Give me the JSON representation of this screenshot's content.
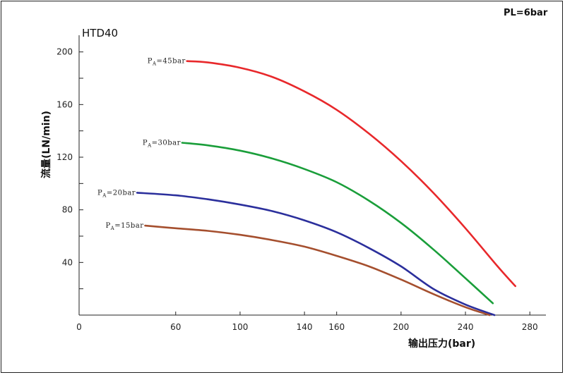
{
  "corner_label": "PL=6bar",
  "chart_data": {
    "type": "line",
    "title": "HTD40",
    "xlabel": "输出压力(bar)",
    "ylabel": "流量(LN/min)",
    "xlim": [
      0,
      290
    ],
    "ylim": [
      0,
      210
    ],
    "x_ticks": [
      0,
      60,
      100,
      140,
      160,
      200,
      240,
      280
    ],
    "y_ticks": [
      40,
      80,
      120,
      160,
      200
    ],
    "grid": false,
    "legend": "inline labels at curve starts",
    "series": [
      {
        "name": "PA=45bar",
        "color": "#e8282b",
        "x": [
          67,
          80,
          100,
          120,
          140,
          160,
          180,
          200,
          220,
          240,
          260,
          271
        ],
        "y": [
          193,
          192,
          188,
          181,
          170,
          156,
          138,
          117,
          93,
          66,
          37,
          22
        ]
      },
      {
        "name": "PA=30bar",
        "color": "#1a9e3a",
        "x": [
          64,
          80,
          100,
          120,
          140,
          160,
          180,
          200,
          220,
          240,
          257
        ],
        "y": [
          131,
          129,
          125,
          119,
          111,
          101,
          87,
          70,
          50,
          28,
          9
        ]
      },
      {
        "name": "PA=20bar",
        "color": "#2b2f9c",
        "x": [
          36,
          60,
          80,
          100,
          120,
          140,
          160,
          180,
          200,
          220,
          240,
          258
        ],
        "y": [
          93,
          91,
          88,
          84,
          79,
          72,
          63,
          51,
          37,
          20,
          8,
          0
        ]
      },
      {
        "name": "PA=15bar",
        "color": "#a54f2e",
        "x": [
          41,
          60,
          80,
          100,
          120,
          140,
          160,
          180,
          200,
          220,
          240,
          255
        ],
        "y": [
          68,
          66,
          64,
          61,
          57,
          52,
          45,
          37,
          27,
          16,
          6,
          0
        ]
      }
    ]
  }
}
